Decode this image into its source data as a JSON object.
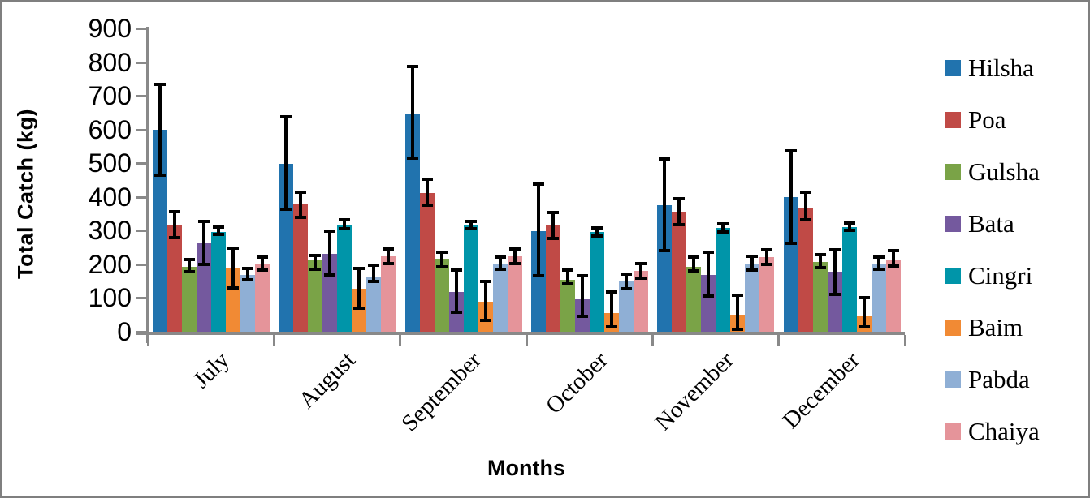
{
  "chart_data": {
    "type": "bar",
    "title": "",
    "xlabel": "Months",
    "ylabel": "Total Catch (kg)",
    "ylim": [
      0,
      900
    ],
    "yticks": [
      0,
      100,
      200,
      300,
      400,
      500,
      600,
      700,
      800,
      900
    ],
    "grid": false,
    "legend_position": "right",
    "error_bars": true,
    "categories": [
      "July",
      "August",
      "September",
      "October",
      "November",
      "December"
    ],
    "series": [
      {
        "name": "Hilsha",
        "color": "#2173AE",
        "values": [
          600,
          498,
          648,
          298,
          375,
          400
        ],
        "err_low": [
          465,
          363,
          515,
          165,
          240,
          263
        ],
        "err_high": [
          735,
          637,
          788,
          437,
          512,
          537
        ]
      },
      {
        "name": "Poa",
        "color": "#C04A46",
        "values": [
          318,
          377,
          412,
          315,
          357,
          367
        ],
        "err_low": [
          280,
          340,
          375,
          277,
          318,
          333
        ],
        "err_high": [
          357,
          413,
          452,
          353,
          395,
          413
        ]
      },
      {
        "name": "Gulsha",
        "color": "#7AA347",
        "values": [
          192,
          213,
          216,
          155,
          193,
          208
        ],
        "err_low": [
          178,
          185,
          193,
          142,
          180,
          190
        ],
        "err_high": [
          213,
          226,
          237,
          183,
          222,
          228
        ]
      },
      {
        "name": "Bata",
        "color": "#74599E",
        "values": [
          262,
          230,
          118,
          97,
          168,
          178
        ],
        "err_low": [
          200,
          168,
          57,
          45,
          105,
          110
        ],
        "err_high": [
          328,
          298,
          183,
          167,
          237,
          243
        ]
      },
      {
        "name": "Cingri",
        "color": "#0095A9",
        "values": [
          297,
          318,
          315,
          295,
          308,
          310
        ],
        "err_low": [
          288,
          306,
          305,
          285,
          297,
          300
        ],
        "err_high": [
          310,
          332,
          327,
          308,
          320,
          322
        ]
      },
      {
        "name": "Baim",
        "color": "#F18A34",
        "values": [
          187,
          128,
          88,
          55,
          50,
          45
        ],
        "err_low": [
          130,
          70,
          33,
          15,
          8,
          15
        ],
        "err_high": [
          248,
          188,
          148,
          118,
          108,
          100
        ]
      },
      {
        "name": "Pabda",
        "color": "#8FAFD5",
        "values": [
          168,
          162,
          202,
          148,
          200,
          202
        ],
        "err_low": [
          153,
          150,
          185,
          128,
          182,
          185
        ],
        "err_high": [
          188,
          198,
          221,
          172,
          225,
          222
        ]
      },
      {
        "name": "Chaiya",
        "color": "#E5949A",
        "values": [
          200,
          225,
          223,
          181,
          222,
          215
        ],
        "err_low": [
          183,
          203,
          202,
          160,
          200,
          195
        ],
        "err_high": [
          222,
          245,
          245,
          202,
          243,
          240
        ]
      }
    ]
  },
  "style": {
    "axis_line_color": "#898989",
    "error_bar_color": "#000000",
    "frame_border_color": "#7F7F7F",
    "background": "#FFFFFF"
  }
}
